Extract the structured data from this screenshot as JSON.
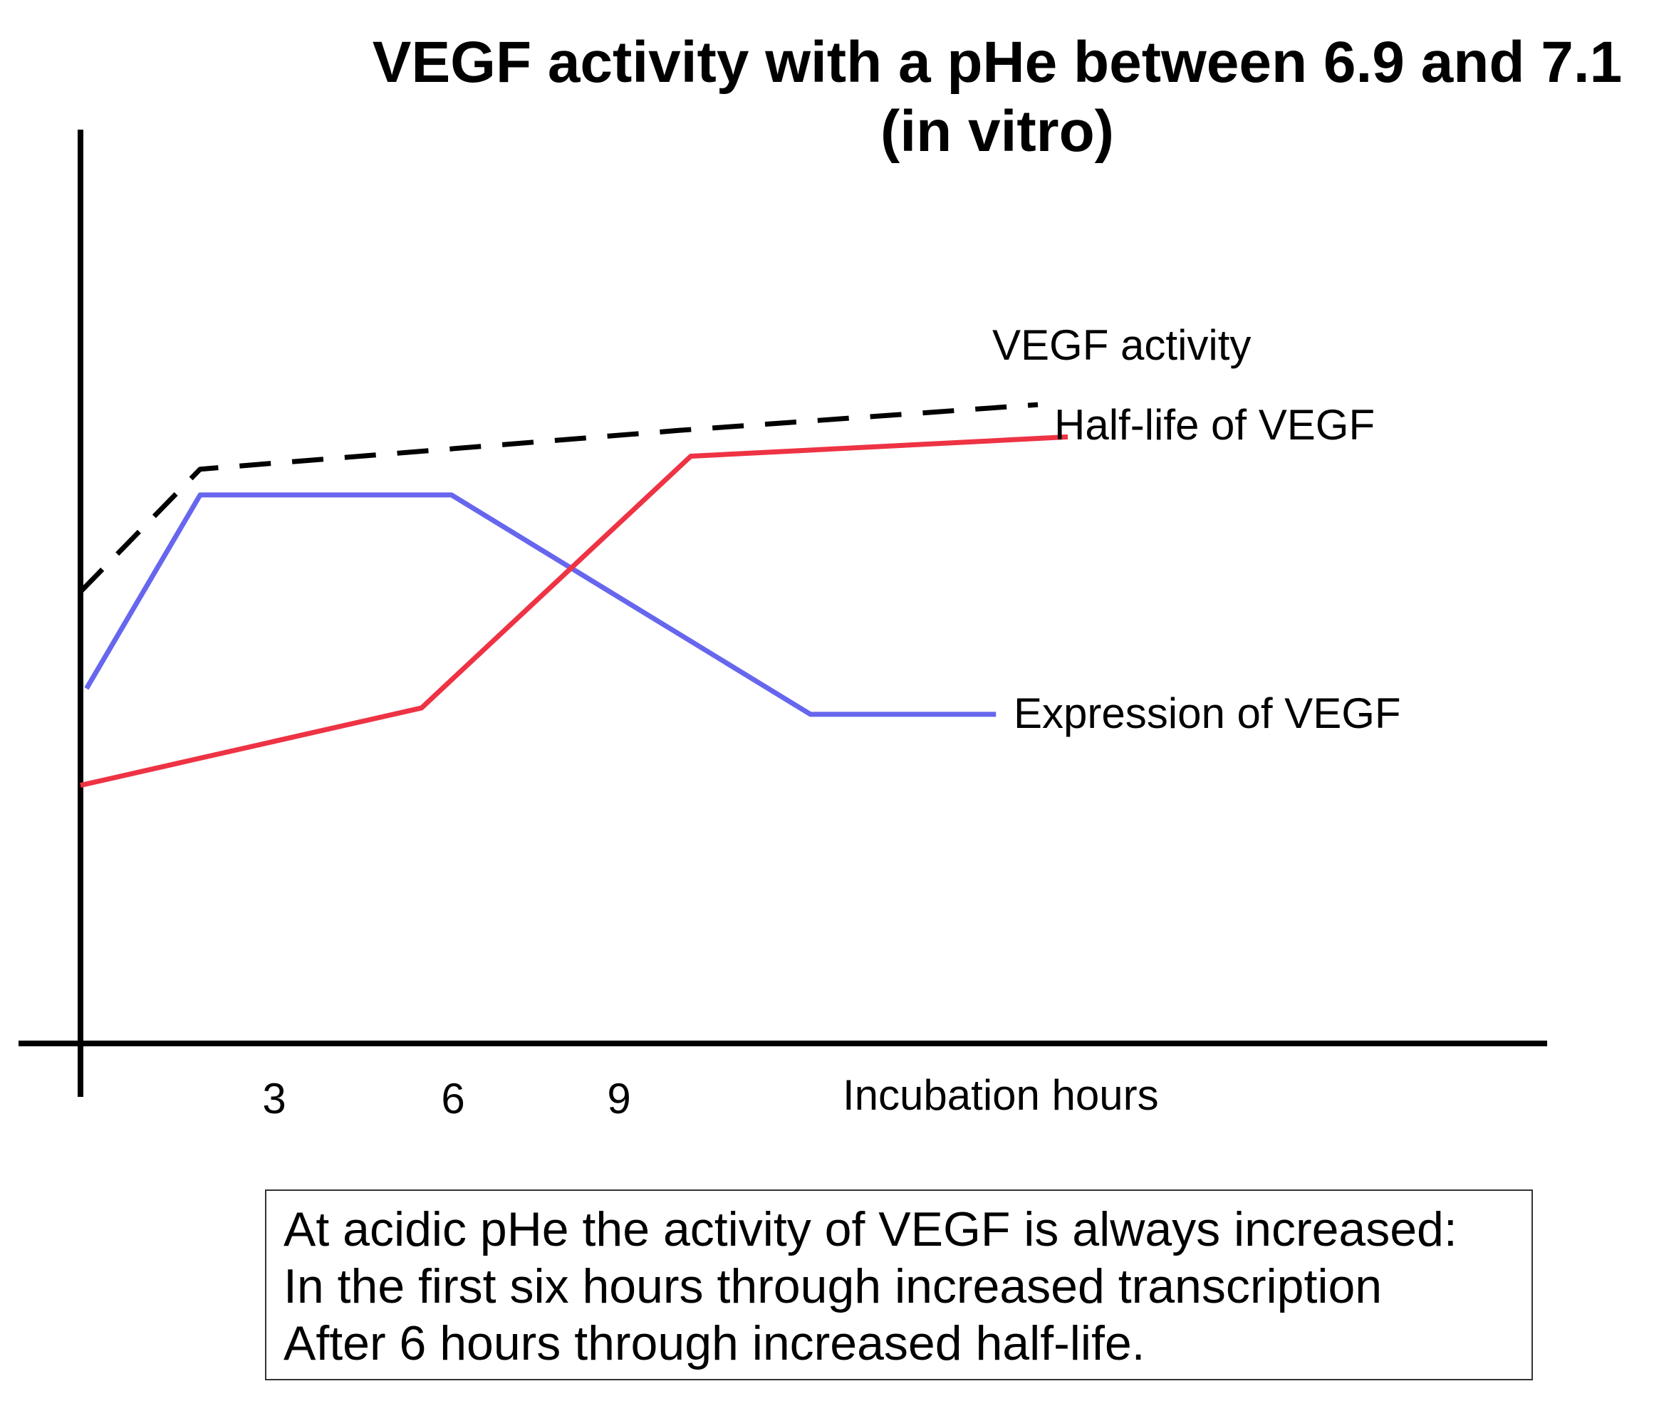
{
  "chart_data": {
    "type": "line",
    "title": "VEGF activity with a pHe between 6.9 and 7.1",
    "subtitle": "(in vitro)",
    "xlabel": "Incubation hours",
    "ylabel": "",
    "x_ticks": [
      "3",
      "6",
      "9"
    ],
    "xlim": [
      0,
      25
    ],
    "ylim": [
      0,
      100
    ],
    "grid": false,
    "series": [
      {
        "name": "VEGF activity",
        "style": "dashed",
        "color": "#000000",
        "points": [
          [
            0,
            70
          ],
          [
            2,
            89
          ],
          [
            10,
            95
          ],
          [
            16,
            99
          ]
        ]
      },
      {
        "name": "Expression of VEGF",
        "style": "solid",
        "color": "#6666ee",
        "points": [
          [
            0.1,
            55
          ],
          [
            2,
            85
          ],
          [
            6.2,
            85
          ],
          [
            12.2,
            51
          ],
          [
            15.3,
            51
          ]
        ]
      },
      {
        "name": "Half-life of VEGF",
        "style": "solid",
        "color": "#ee3344",
        "points": [
          [
            0,
            40
          ],
          [
            5.7,
            52
          ],
          [
            10.2,
            91
          ],
          [
            16.5,
            94
          ]
        ]
      }
    ],
    "annotations": [
      "At acidic pHe the activity of VEGF is always increased:",
      "In the first six hours through increased transcription",
      "After 6 hours through increased half-life."
    ]
  }
}
